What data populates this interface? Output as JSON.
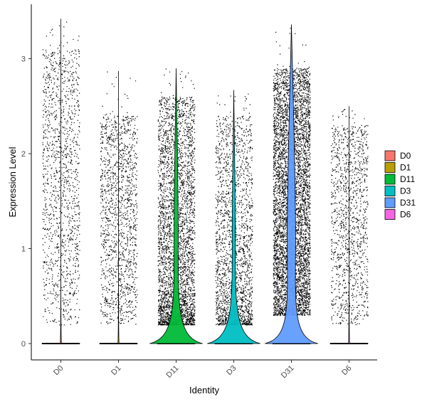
{
  "chart_data": {
    "type": "violin",
    "title": "",
    "xlabel": "Identity",
    "ylabel": "Expression Level",
    "ylim": [
      -0.18,
      3.45
    ],
    "yticks": [
      0,
      1,
      2,
      3
    ],
    "categories": [
      "D0",
      "D1",
      "D11",
      "D3",
      "D31",
      "D6"
    ],
    "legend": {
      "position": "right",
      "title": ""
    },
    "series": [
      {
        "name": "D0",
        "color": "#F8766D",
        "max": 3.42,
        "zero_fraction": 0.995,
        "nonzero_cells": 1300,
        "nonzero_range": [
          0.2,
          3.1
        ],
        "violin_zero_halfwidth": 0.01,
        "violin_nonzero_halfwidth": 0.0
      },
      {
        "name": "D1",
        "color": "#B79F00",
        "max": 2.87,
        "zero_fraction": 0.995,
        "nonzero_cells": 1400,
        "nonzero_range": [
          0.2,
          2.4
        ],
        "violin_zero_halfwidth": 0.01,
        "violin_nonzero_halfwidth": 0.0
      },
      {
        "name": "D11",
        "color": "#00BA38",
        "max": 2.9,
        "zero_fraction": 0.93,
        "nonzero_cells": 3500,
        "nonzero_range": [
          0.2,
          2.6
        ],
        "violin_zero_halfwidth": 0.46,
        "violin_nonzero_halfwidth": 0.04
      },
      {
        "name": "D3",
        "color": "#00BFC4",
        "max": 2.67,
        "zero_fraction": 0.94,
        "nonzero_cells": 2000,
        "nonzero_range": [
          0.2,
          2.4
        ],
        "violin_zero_halfwidth": 0.46,
        "violin_nonzero_halfwidth": 0.03
      },
      {
        "name": "D31",
        "color": "#619CFF",
        "max": 3.36,
        "zero_fraction": 0.9,
        "nonzero_cells": 5500,
        "nonzero_range": [
          0.3,
          2.9
        ],
        "violin_zero_halfwidth": 0.46,
        "violin_nonzero_halfwidth": 0.08
      },
      {
        "name": "D6",
        "color": "#F564E3",
        "max": 2.5,
        "zero_fraction": 0.995,
        "nonzero_cells": 1200,
        "nonzero_range": [
          0.2,
          2.3
        ],
        "violin_zero_halfwidth": 0.01,
        "violin_nonzero_halfwidth": 0.0
      }
    ]
  }
}
